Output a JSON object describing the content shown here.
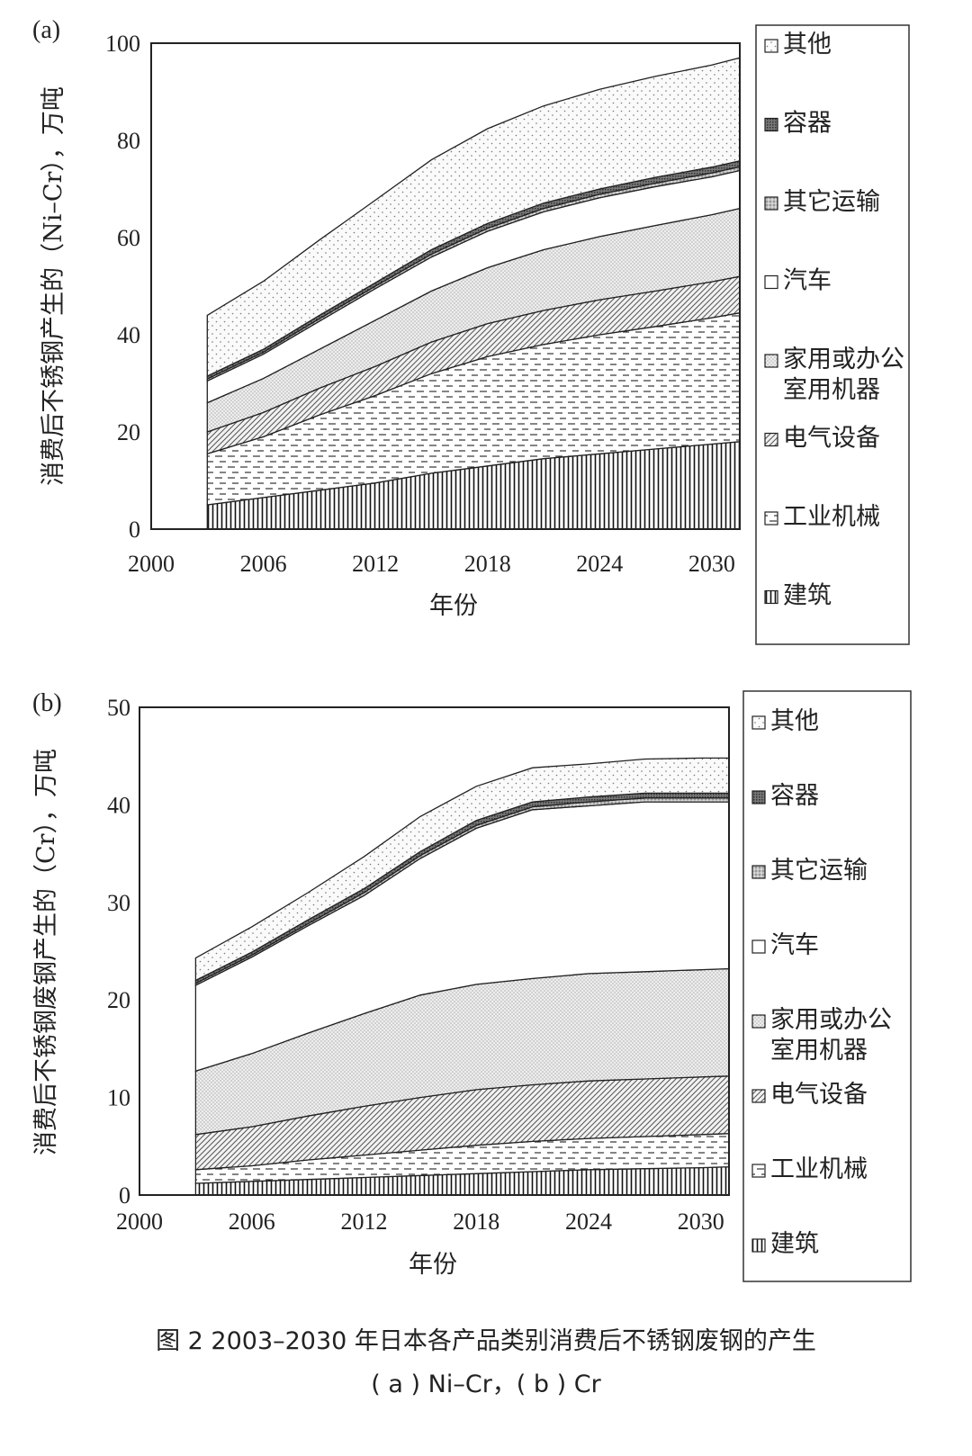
{
  "caption": {
    "line1": "图 2  2003–2030 年日本各产品类别消费后不锈钢废钢的产生",
    "line2": "( a ) Ni–Cr，( b ) Cr"
  },
  "chart_data": [
    {
      "type": "area",
      "panel": "(a)",
      "stacked": true,
      "title": "",
      "xlabel": "年份",
      "ylabel": "消费后不锈钢产生的（Ni–Cr），万吨",
      "xlim": [
        2000,
        2031.5
      ],
      "ylim": [
        0,
        100
      ],
      "xticks": [
        2000,
        2006,
        2012,
        2018,
        2024,
        2030
      ],
      "yticks": [
        0,
        20,
        40,
        60,
        80,
        100
      ],
      "x": [
        2003,
        2006,
        2009,
        2012,
        2015,
        2018,
        2021,
        2024,
        2027,
        2030,
        2031.5
      ],
      "series": [
        {
          "name": "建筑",
          "values": [
            5.0,
            6.5,
            8.0,
            9.5,
            11.5,
            13.0,
            14.5,
            15.5,
            16.5,
            17.5,
            18.0
          ]
        },
        {
          "name": "工业机械",
          "values": [
            10.5,
            12.5,
            15.5,
            18.0,
            20.5,
            22.5,
            23.5,
            24.5,
            25.2,
            26.0,
            26.5
          ]
        },
        {
          "name": "电气设备",
          "values": [
            4.5,
            5.0,
            5.5,
            6.0,
            6.5,
            6.8,
            7.0,
            7.2,
            7.3,
            7.4,
            7.5
          ]
        },
        {
          "name": "家用或办公室用机器",
          "values": [
            6.0,
            7.0,
            8.0,
            9.5,
            10.5,
            11.5,
            12.5,
            13.0,
            13.5,
            13.8,
            14.0
          ]
        },
        {
          "name": "汽车",
          "values": [
            4.5,
            5.0,
            5.8,
            6.5,
            7.0,
            7.5,
            7.8,
            8.0,
            8.0,
            7.8,
            7.8
          ]
        },
        {
          "name": "其它运输",
          "values": [
            0.4,
            0.4,
            0.5,
            0.5,
            0.6,
            0.6,
            0.7,
            0.7,
            0.7,
            0.8,
            0.8
          ]
        },
        {
          "name": "容器",
          "values": [
            0.6,
            0.6,
            0.7,
            0.7,
            0.9,
            1.0,
            1.1,
            1.1,
            1.2,
            1.2,
            1.2
          ]
        },
        {
          "name": "其他",
          "values": [
            12.5,
            14.0,
            15.5,
            17.0,
            18.5,
            19.5,
            20.0,
            20.5,
            20.8,
            21.0,
            21.2
          ]
        }
      ],
      "legend": [
        "其他",
        "容器",
        "其它运输",
        "汽车",
        "家用或办公室用机器",
        "电气设备",
        "工业机械",
        "建筑"
      ],
      "legend_placement": "right"
    },
    {
      "type": "area",
      "panel": "(b)",
      "stacked": true,
      "title": "",
      "xlabel": "年份",
      "ylabel": "消费后不锈钢废钢产生的（Cr），万吨",
      "xlim": [
        2000,
        2031.5
      ],
      "ylim": [
        0,
        50
      ],
      "xticks": [
        2000,
        2006,
        2012,
        2018,
        2024,
        2030
      ],
      "yticks": [
        0,
        10,
        20,
        30,
        40,
        50
      ],
      "x": [
        2003,
        2006,
        2009,
        2012,
        2015,
        2018,
        2021,
        2024,
        2027,
        2030,
        2031.5
      ],
      "series": [
        {
          "name": "建筑",
          "values": [
            1.2,
            1.4,
            1.6,
            1.8,
            2.0,
            2.2,
            2.4,
            2.6,
            2.7,
            2.8,
            2.9
          ]
        },
        {
          "name": "工业机械",
          "values": [
            1.4,
            1.6,
            2.0,
            2.3,
            2.6,
            2.9,
            3.1,
            3.2,
            3.3,
            3.4,
            3.4
          ]
        },
        {
          "name": "电气设备",
          "values": [
            3.6,
            4.0,
            4.5,
            5.0,
            5.4,
            5.7,
            5.8,
            5.9,
            5.9,
            5.9,
            5.9
          ]
        },
        {
          "name": "家用或办公室用机器",
          "values": [
            6.5,
            7.5,
            8.5,
            9.5,
            10.5,
            10.8,
            10.9,
            11.0,
            11.0,
            11.0,
            11.0
          ]
        },
        {
          "name": "汽车",
          "values": [
            8.8,
            9.9,
            11.0,
            12.1,
            14.0,
            16.0,
            17.3,
            17.2,
            17.4,
            17.2,
            17.1
          ]
        },
        {
          "name": "其它运输",
          "values": [
            0.2,
            0.2,
            0.2,
            0.3,
            0.3,
            0.3,
            0.3,
            0.4,
            0.4,
            0.4,
            0.4
          ]
        },
        {
          "name": "容器",
          "values": [
            0.3,
            0.3,
            0.4,
            0.4,
            0.4,
            0.5,
            0.5,
            0.5,
            0.5,
            0.5,
            0.5
          ]
        },
        {
          "name": "其他",
          "values": [
            2.3,
            2.6,
            2.8,
            3.3,
            3.6,
            3.5,
            3.5,
            3.4,
            3.5,
            3.6,
            3.6
          ]
        }
      ],
      "legend": [
        "其他",
        "容器",
        "其它运输",
        "汽车",
        "家用或办公室用机器",
        "电气设备",
        "工业机械",
        "建筑"
      ],
      "legend_placement": "right"
    }
  ]
}
